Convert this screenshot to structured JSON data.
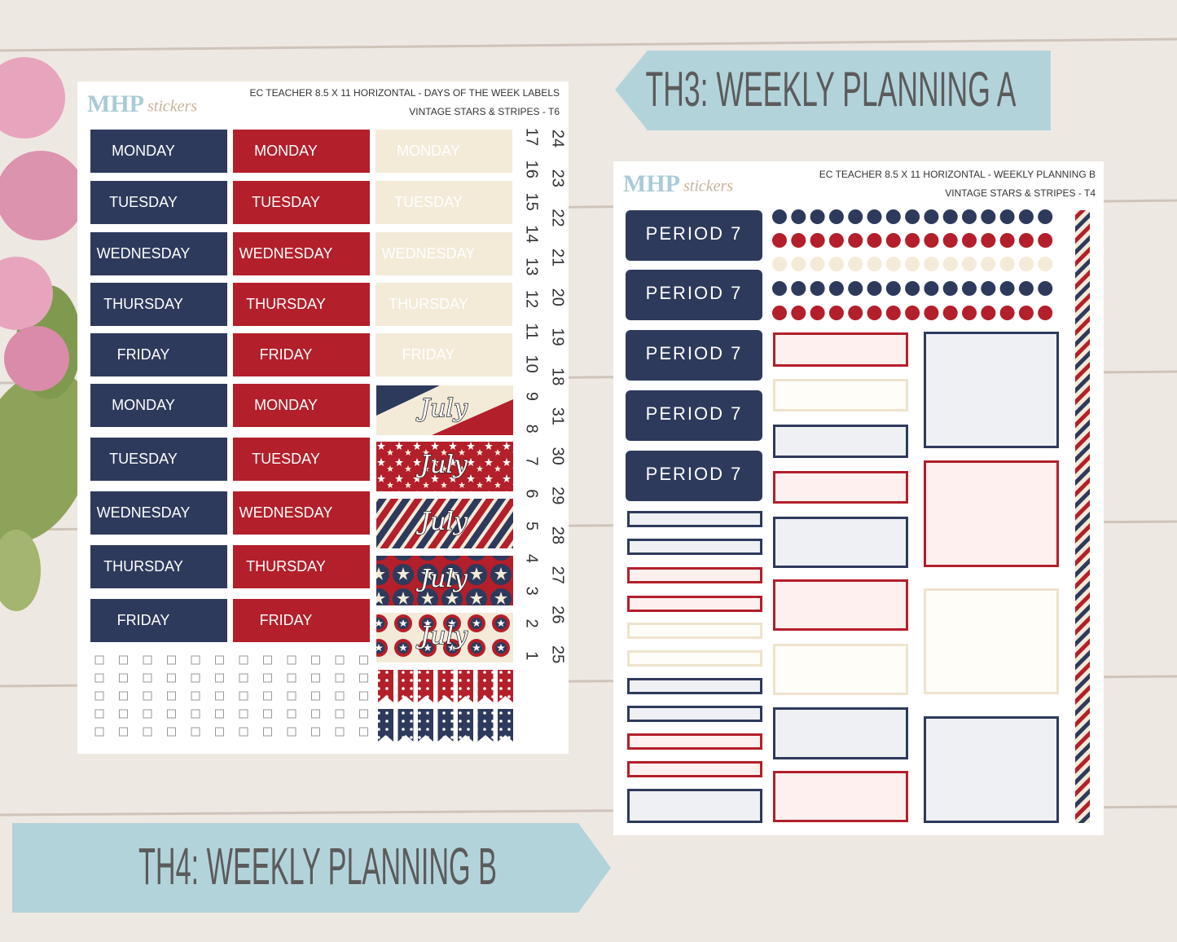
{
  "banners": {
    "a": "TH3: WEEKLY PLANNING A",
    "b": "TH4: WEEKLY PLANNING B"
  },
  "left_sheet": {
    "logo": {
      "brand": "MHP",
      "tag": "stickers"
    },
    "header": [
      "EC TEACHER 8.5 X 11 HORIZONTAL - DAYS OF THE WEEK LABELS",
      "VINTAGE STARS & STRIPES - T6"
    ],
    "navy_labels": [
      "MONDAY",
      "TUESDAY",
      "WEDNESDAY",
      "THURSDAY",
      "FRIDAY",
      "MONDAY",
      "TUESDAY",
      "WEDNESDAY",
      "THURSDAY",
      "FRIDAY"
    ],
    "red_labels": [
      "MONDAY",
      "TUESDAY",
      "WEDNESDAY",
      "THURSDAY",
      "FRIDAY",
      "MONDAY",
      "TUESDAY",
      "WEDNESDAY",
      "THURSDAY",
      "FRIDAY"
    ],
    "cream_labels": [
      "MONDAY",
      "TUESDAY",
      "WEDNESDAY",
      "THURSDAY",
      "FRIDAY"
    ],
    "july": [
      "July",
      "July",
      "July",
      "July",
      "July"
    ],
    "numbers_a": [
      17,
      16,
      15,
      14,
      13,
      12,
      11,
      10,
      9,
      8,
      7,
      6,
      5,
      4,
      3,
      2,
      1
    ],
    "numbers_b": [
      24,
      23,
      22,
      21,
      20,
      19,
      18,
      31,
      30,
      29,
      28,
      27,
      26,
      25
    ]
  },
  "right_sheet": {
    "logo": {
      "brand": "MHP",
      "tag": "stickers"
    },
    "header": [
      "EC TEACHER 8.5 X 11 HORIZONTAL - WEEKLY PLANNING B",
      "VINTAGE STARS & STRIPES - T4"
    ],
    "periods": [
      "PERIOD 7",
      "PERIOD 7",
      "PERIOD 7",
      "PERIOD 7",
      "PERIOD 7"
    ]
  }
}
